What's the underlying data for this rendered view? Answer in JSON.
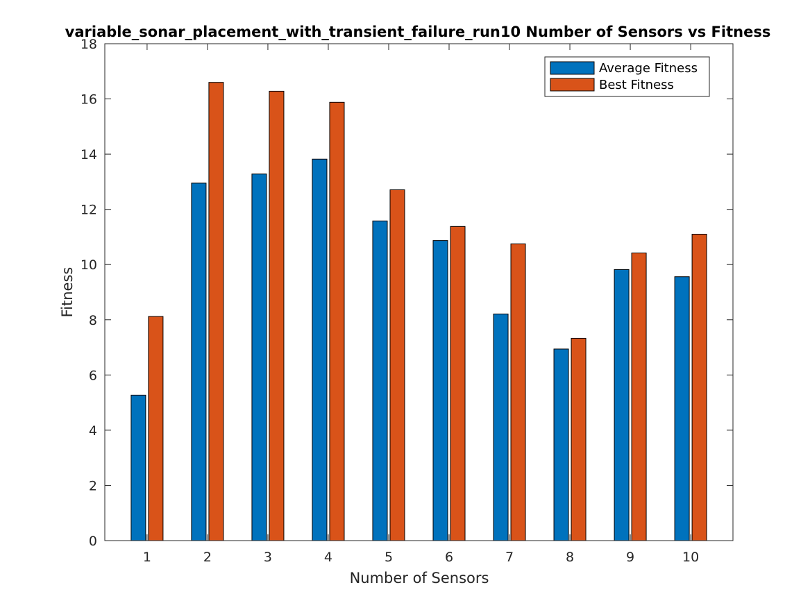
{
  "chart_data": {
    "type": "bar",
    "title": "variable_sonar_placement_with_transient_failure_run10 Number of Sensors vs Fitness",
    "xlabel": "Number of Sensors",
    "ylabel": "Fitness",
    "categories": [
      "1",
      "2",
      "3",
      "4",
      "5",
      "6",
      "7",
      "8",
      "9",
      "10"
    ],
    "ylim": [
      0,
      18
    ],
    "yticks": [
      0,
      2,
      4,
      6,
      8,
      10,
      12,
      14,
      16,
      18
    ],
    "grid": false,
    "legend_position": "top-right",
    "series": [
      {
        "name": "Average Fitness",
        "color": "#0072BD",
        "values": [
          5.27,
          12.95,
          13.28,
          13.82,
          11.58,
          10.87,
          8.21,
          6.94,
          9.82,
          9.56
        ]
      },
      {
        "name": "Best Fitness",
        "color": "#D95319",
        "values": [
          8.12,
          16.6,
          16.28,
          15.88,
          12.71,
          11.38,
          10.75,
          7.33,
          10.42,
          11.1
        ]
      }
    ]
  }
}
